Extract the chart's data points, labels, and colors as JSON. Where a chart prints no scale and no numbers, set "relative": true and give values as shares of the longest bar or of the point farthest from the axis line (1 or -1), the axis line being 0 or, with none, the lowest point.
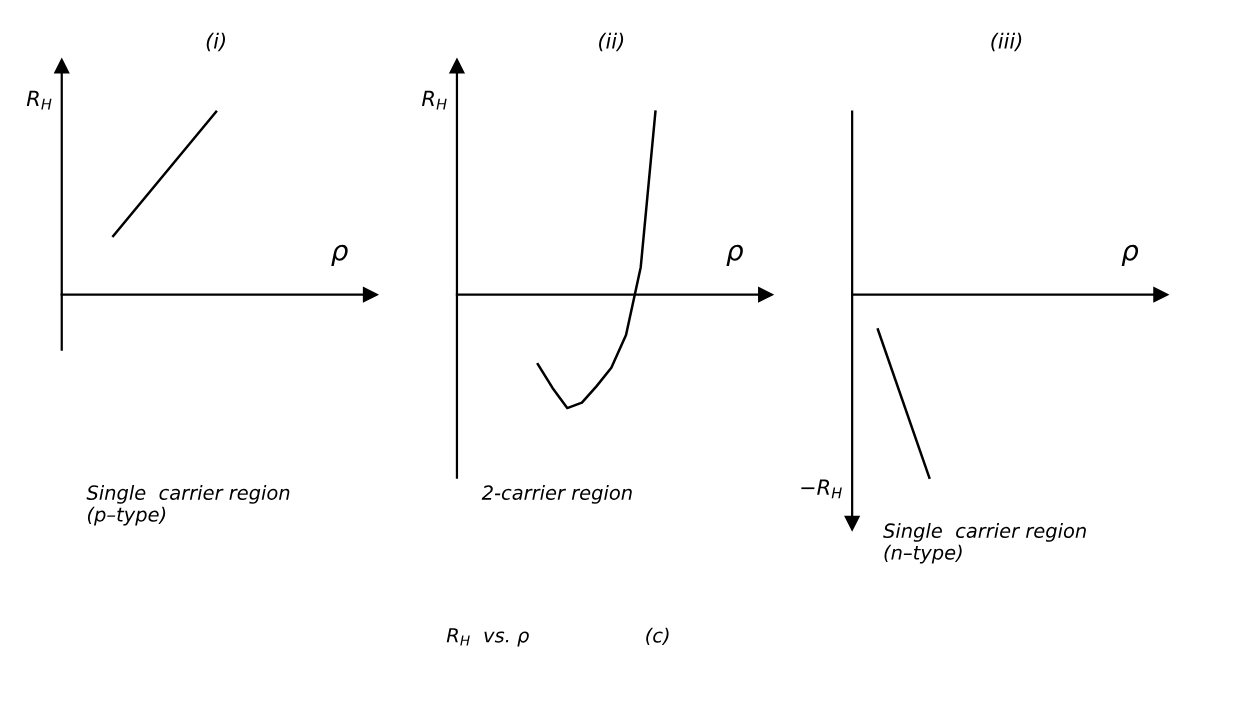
{
  "chart_data": [
    {
      "type": "line",
      "relative": true,
      "title": "(i)",
      "ylabel": "R$_{H}$",
      "xlabel": "ρ",
      "categories": [
        null,
        null,
        null
      ],
      "series": [
        {
          "color": "#000000",
          "values": [
            0.32,
            1,
            null
          ]
        }
      ],
      "annotations": [
        "Single  carrier region\n(p–type)"
      ],
      "grid": false,
      "legend": false
    },
    {
      "type": "line",
      "relative": true,
      "title": "(ii)",
      "ylabel": "R$_{H}$",
      "xlabel": "ρ",
      "categories": [
        null,
        null,
        null,
        null,
        null,
        null,
        null,
        null,
        null,
        null,
        null,
        null,
        null,
        null,
        null,
        null,
        null,
        null,
        null,
        null,
        null
      ],
      "series": [
        {
          "color": "#000000",
          "values": [
            null,
            null,
            null,
            null,
            null,
            -0.38,
            -0.51,
            -0.62,
            -0.59,
            -0.5,
            -0.4,
            -0.22,
            0.15,
            1,
            null,
            null,
            null,
            null,
            null,
            null,
            null
          ]
        }
      ],
      "annotations": [
        "2-carrier region",
        "R$_{H}$  vs. ρ",
        "(c)"
      ],
      "grid": false,
      "legend": false
    },
    {
      "type": "line",
      "relative": true,
      "title": "(iii)",
      "ylabel": "−R$_{H}$",
      "xlabel": "ρ",
      "categories": [
        null,
        null,
        null,
        null,
        null,
        null
      ],
      "series": [
        {
          "color": "#000000",
          "values": [
            -0.19,
            -1,
            null,
            null,
            null,
            null
          ]
        }
      ],
      "annotations": [
        "Single  carrier region\n(n–type)"
      ],
      "grid": false,
      "legend": false
    }
  ]
}
